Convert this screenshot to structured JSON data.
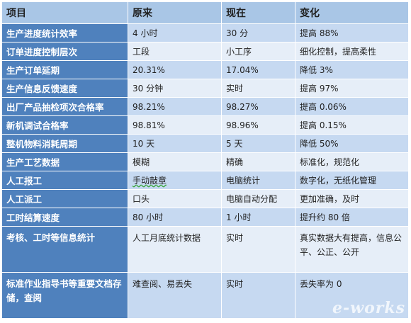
{
  "headers": [
    "项目",
    "原来",
    "现在",
    "变化"
  ],
  "rows": [
    {
      "item": "生产进度统计效率",
      "before": "4 小时",
      "after": "30 分",
      "change": "提高 88%"
    },
    {
      "item": "订单进度控制层次",
      "before": "工段",
      "after": "小工序",
      "change": "细化控制，提高柔性"
    },
    {
      "item": "生产订单延期",
      "before": "20.31%",
      "after": "17.04%",
      "change": "降低 3%"
    },
    {
      "item": "生产信息反馈速度",
      "before": "30 分钟",
      "after": "实时",
      "change": "提高 97%"
    },
    {
      "item": "出厂产品抽检项次合格率",
      "before": "98.21%",
      "after": "98.27%",
      "change": "提高 0.06%"
    },
    {
      "item": "新机调试合格率",
      "before": "98.81%",
      "after": "98.96%",
      "change": "提高 0.15%"
    },
    {
      "item": "整机物料消耗周期",
      "before": "10 天",
      "after": "5 天",
      "change": "降低 50%"
    },
    {
      "item": "生产工艺数据",
      "before": "模糊",
      "after": "精确",
      "change": "标准化，规范化"
    },
    {
      "item": "人工报工",
      "before": "手动敲章",
      "after": "电脑统计",
      "change": "数字化，无纸化管理"
    },
    {
      "item": "人工派工",
      "before": "口头",
      "after": "电脑自动分配",
      "change": "更加准确，及时"
    },
    {
      "item": "工时结算速度",
      "before": "80 小时",
      "after": "1 小时",
      "change": "提升约 80 倍"
    },
    {
      "item": "考核、工时等信息统计",
      "before": "人工月底统计数据",
      "after": "实时",
      "change": "真实数据大有提高，信息公平、公正、公开"
    },
    {
      "item": "标准作业指导书等重要文档存储，查阅",
      "before": "难查阅、易丢失",
      "after": "实时",
      "change": "丢失率为 0"
    }
  ],
  "watermark": "e-works"
}
